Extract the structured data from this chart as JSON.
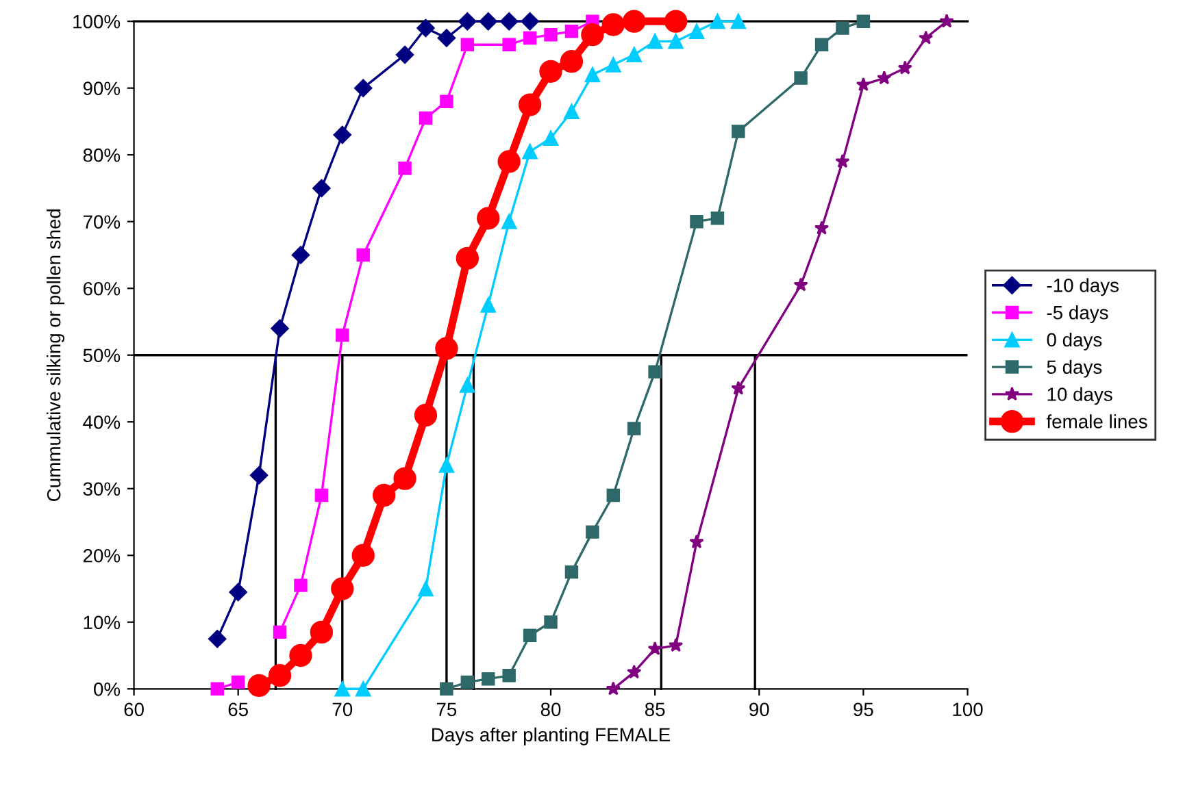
{
  "chart_data": {
    "type": "line",
    "xlabel": "Days after planting FEMALE",
    "ylabel": "Cummulative silking or pollen shed",
    "xlim": [
      60,
      100
    ],
    "xticks": [
      60,
      65,
      70,
      75,
      80,
      85,
      90,
      95,
      100
    ],
    "ylim": [
      0,
      100
    ],
    "yticks": [
      {
        "value": 0,
        "label": "0%"
      },
      {
        "value": 10,
        "label": "10%"
      },
      {
        "value": 20,
        "label": "20%"
      },
      {
        "value": 30,
        "label": "30%"
      },
      {
        "value": 40,
        "label": "40%"
      },
      {
        "value": 50,
        "label": "50%"
      },
      {
        "value": 60,
        "label": "60%"
      },
      {
        "value": 70,
        "label": "70%"
      },
      {
        "value": 80,
        "label": "80%"
      },
      {
        "value": 90,
        "label": "90%"
      },
      {
        "value": 100,
        "label": "100%"
      }
    ],
    "grid": false,
    "legend": "right",
    "ref_lines": [
      {
        "axis": "y",
        "value": 50,
        "color": "#000000"
      }
    ],
    "series": [
      {
        "name": "-10 days",
        "color": "#000080",
        "marker": "diamond",
        "x": [
          64,
          65,
          66,
          67,
          68,
          69,
          70,
          71,
          73,
          74,
          75,
          76,
          77,
          78,
          79
        ],
        "values": [
          7.5,
          14.5,
          32,
          54,
          65,
          75,
          83,
          90,
          95,
          99,
          97.5,
          100,
          100,
          100,
          100
        ]
      },
      {
        "name": "-5 days",
        "color": "#ff00ff",
        "marker": "square",
        "x": [
          64,
          65,
          66,
          67,
          68,
          69,
          70,
          71,
          73,
          74,
          75,
          76,
          78,
          79,
          80,
          81,
          82
        ],
        "values": [
          0,
          1,
          null,
          8.5,
          15.5,
          29,
          53,
          65,
          78,
          85.5,
          88,
          96.5,
          96.5,
          97.5,
          98,
          98.5,
          100
        ]
      },
      {
        "name": "0 days",
        "color": "#00ccff",
        "marker": "triangle",
        "x": [
          70,
          71,
          74,
          75,
          76,
          77,
          78,
          79,
          80,
          81,
          82,
          83,
          84,
          85,
          86,
          87,
          88,
          89
        ],
        "values": [
          0,
          0,
          15,
          33.5,
          45.5,
          57.5,
          70,
          80.5,
          82.5,
          86.5,
          92,
          93.5,
          95,
          97,
          97,
          98.5,
          100,
          100
        ]
      },
      {
        "name": "5 days",
        "color": "#2f6868",
        "marker": "square",
        "x": [
          75,
          76,
          77,
          78,
          79,
          80,
          81,
          82,
          83,
          84,
          85,
          87,
          88,
          89,
          92,
          93,
          94,
          95
        ],
        "values": [
          0,
          1,
          1.5,
          2,
          8,
          10,
          17.5,
          23.5,
          29,
          39,
          47.5,
          70,
          70.5,
          83.5,
          91.5,
          96.5,
          99,
          100
        ]
      },
      {
        "name": "10 days",
        "color": "#800080",
        "marker": "star",
        "x": [
          83,
          84,
          85,
          86,
          87,
          89,
          92,
          93,
          94,
          95,
          96,
          97,
          98,
          99
        ],
        "values": [
          0,
          2.5,
          6,
          6.5,
          22,
          45,
          60.5,
          69,
          79,
          90.5,
          91.5,
          93,
          97.5,
          100
        ]
      },
      {
        "name": "female lines",
        "color": "#ff0000",
        "marker": "circle",
        "x": [
          66,
          67,
          68,
          69,
          70,
          71,
          72,
          73,
          74,
          75,
          76,
          77,
          78,
          79,
          80,
          81,
          82,
          83,
          84,
          86
        ],
        "values": [
          0.5,
          2,
          5,
          8.5,
          15,
          20,
          29,
          31.5,
          41,
          51,
          64.5,
          70.5,
          79,
          87.5,
          92.5,
          94,
          98,
          99.5,
          100,
          100
        ]
      },
      {
        "color": "#000000",
        "marker": "none",
        "x": [
          66.8,
          66.8
        ],
        "values": [
          0,
          50
        ]
      },
      {
        "color": "#000000",
        "marker": "none",
        "x": [
          70,
          70
        ],
        "values": [
          0,
          50
        ]
      },
      {
        "color": "#000000",
        "marker": "none",
        "x": [
          75,
          75
        ],
        "values": [
          0,
          50
        ]
      },
      {
        "color": "#000000",
        "marker": "none",
        "x": [
          76.3,
          76.3
        ],
        "values": [
          0,
          50
        ]
      },
      {
        "color": "#000000",
        "marker": "none",
        "x": [
          85.3,
          85.3
        ],
        "values": [
          0,
          50
        ]
      },
      {
        "color": "#000000",
        "marker": "none",
        "x": [
          89.8,
          89.8
        ],
        "values": [
          0,
          50
        ]
      }
    ]
  }
}
